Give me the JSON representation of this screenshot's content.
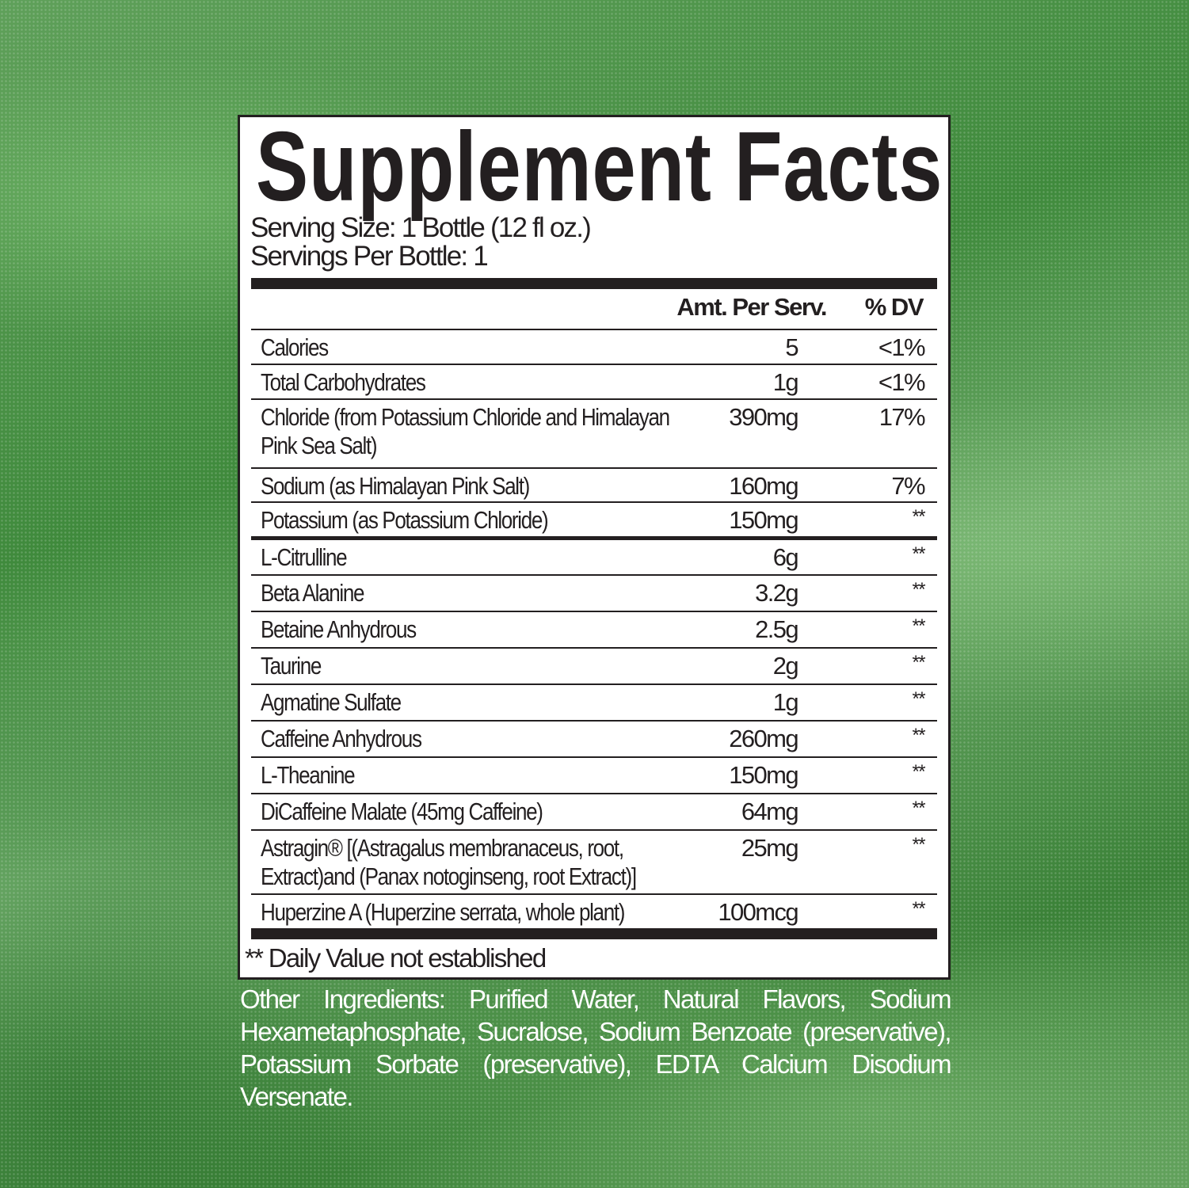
{
  "title": "Supplement Facts",
  "serving_size": "Serving Size: 1 Bottle  (12 fl oz.)",
  "servings_per": "Servings Per Bottle: 1",
  "headers": {
    "amount": "Amt. Per Serv.",
    "dv": "% DV"
  },
  "rows": [
    {
      "name": "Calories",
      "amount": "5",
      "dv": "<1%"
    },
    {
      "name": "Total Carbohydrates",
      "amount": "1g",
      "dv": "<1%"
    },
    {
      "name": "Chloride (from Potassium Chloride and Himalayan Pink Sea Salt)",
      "amount": "390mg",
      "dv": "17%"
    },
    {
      "name": "Sodium (as Himalayan Pink Salt)",
      "amount": "160mg",
      "dv": "7%"
    },
    {
      "name": "Potassium (as Potassium Chloride)",
      "amount": "150mg",
      "dv": "**"
    },
    {
      "name": "L-Citrulline",
      "amount": "6g",
      "dv": "**"
    },
    {
      "name": "Beta Alanine",
      "amount": "3.2g",
      "dv": "**"
    },
    {
      "name": "Betaine Anhydrous",
      "amount": "2.5g",
      "dv": "**"
    },
    {
      "name": "Taurine",
      "amount": "2g",
      "dv": "**"
    },
    {
      "name": "Agmatine Sulfate",
      "amount": "1g",
      "dv": "**"
    },
    {
      "name": "Caffeine Anhydrous",
      "amount": "260mg",
      "dv": "**"
    },
    {
      "name": "L-Theanine",
      "amount": "150mg",
      "dv": "**"
    },
    {
      "name": "DiCaffeine Malate (45mg Caffeine)",
      "amount": "64mg",
      "dv": "**"
    },
    {
      "name": "Astragin® [(Astragalus membranaceus, root, Extract)and (Panax notoginseng, root Extract)]",
      "amount": "25mg",
      "dv": "**"
    },
    {
      "name": "Huperzine A (Huperzine serrata, whole plant)",
      "amount": "100mcg",
      "dv": "**"
    }
  ],
  "footnote": "** Daily Value not established",
  "other_ingredients": "Other Ingredients: Purified Water, Natural Flavors,  Sodium Hexametaphosphate, Sucralose, Sodium Benzoate (preservative), Potassium Sorbate (preservative), EDTA Calcium Disodium Versenate.",
  "colors": {
    "label_text": "#231f20",
    "background": "#4a8f46"
  }
}
